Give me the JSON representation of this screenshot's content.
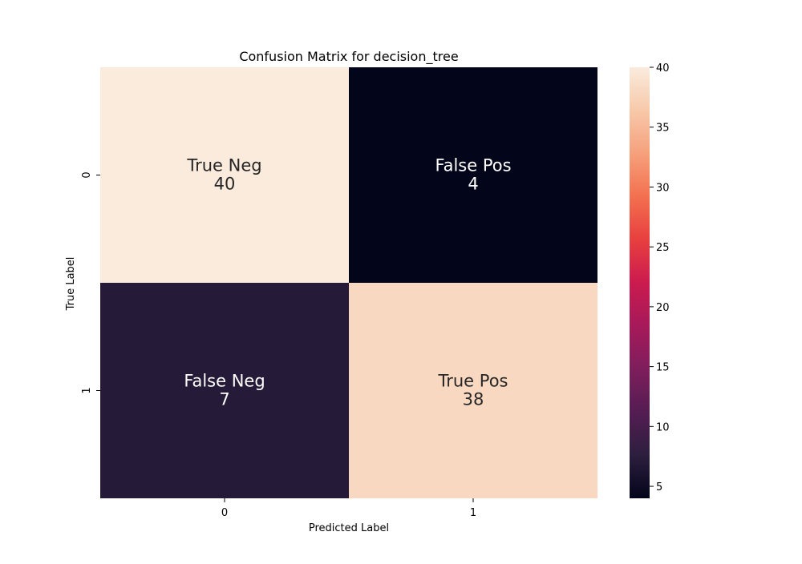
{
  "chart_data": {
    "type": "heatmap",
    "title": "Confusion Matrix for decision_tree",
    "xlabel": "Predicted Label",
    "ylabel": "True Label",
    "x_categories": [
      "0",
      "1"
    ],
    "y_categories": [
      "0",
      "1"
    ],
    "values": [
      [
        40,
        4
      ],
      [
        7,
        38
      ]
    ],
    "cell_labels": [
      [
        "True Neg",
        "False Pos"
      ],
      [
        "False Neg",
        "True Pos"
      ]
    ],
    "colorbar": {
      "min": 4,
      "max": 40,
      "ticks": [
        5,
        10,
        15,
        20,
        25,
        30,
        35,
        40
      ],
      "colormap": "rocket"
    }
  }
}
